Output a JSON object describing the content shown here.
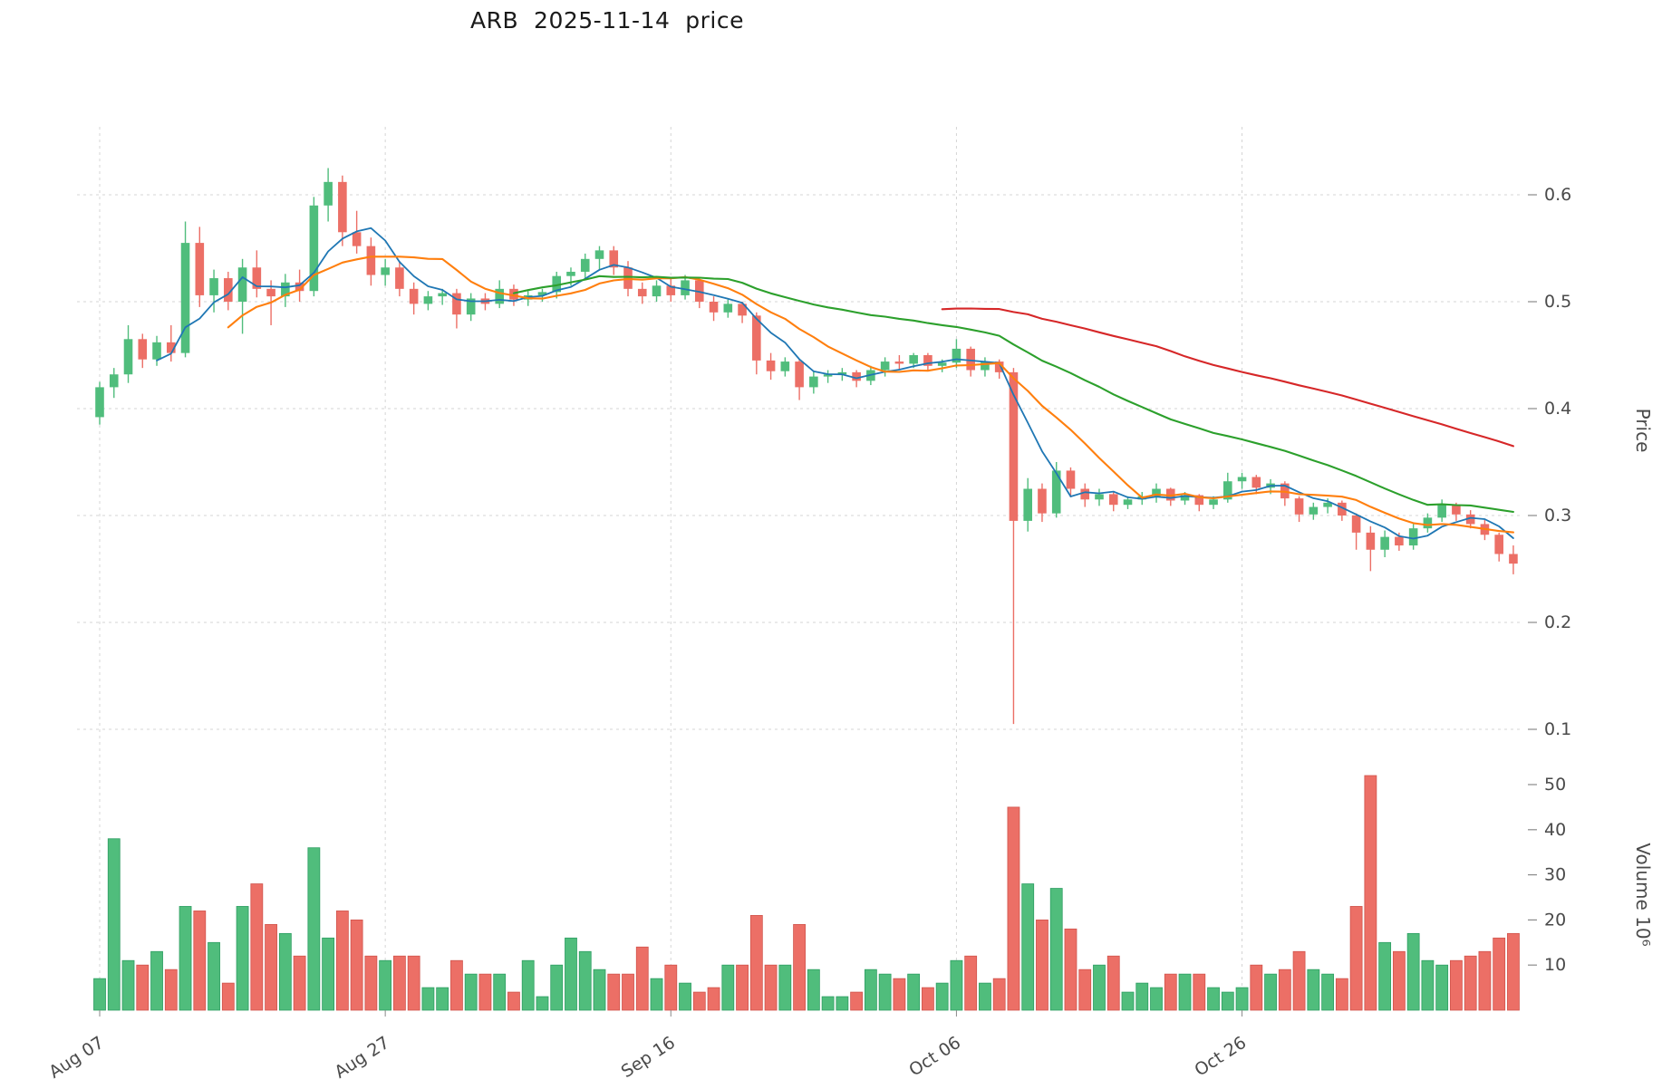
{
  "chart_data": {
    "type": "candlestick",
    "title": "ARB  2025-11-14  price",
    "ylabel_price": "Price",
    "ylabel_volume": "Volume  10⁶",
    "volume_unit": "10^6",
    "background": "#ffffff",
    "grid_color": "#d4d4d4",
    "tick_color": "#4a4a4a",
    "up_color": "#50bd7c",
    "down_color": "#ec6f66",
    "up_edge": "#2e9e63",
    "down_edge": "#d0544c",
    "price_ticks": [
      0.1,
      0.2,
      0.3,
      0.4,
      0.5,
      0.6
    ],
    "volume_ticks": [
      10,
      20,
      30,
      40,
      50
    ],
    "price_range": [
      0.08,
      0.65
    ],
    "x_ticks": [
      {
        "index": 0,
        "label": "Aug 07"
      },
      {
        "index": 20,
        "label": "Aug 27"
      },
      {
        "index": 40,
        "label": "Sep 16"
      },
      {
        "index": 60,
        "label": "Oct 06"
      },
      {
        "index": 80,
        "label": "Oct 26"
      }
    ],
    "moving_averages": [
      {
        "name": "ma-5",
        "window": 5,
        "color": "#1f77b4",
        "width": 1.8
      },
      {
        "name": "ma-10",
        "window": 10,
        "color": "#ff7f0e",
        "width": 2.1
      },
      {
        "name": "ma-30",
        "window": 30,
        "color": "#2ca02c",
        "width": 2.1
      },
      {
        "name": "ma-60",
        "window": 60,
        "color": "#d62728",
        "width": 2.1
      }
    ],
    "candles": [
      [
        "2025-08-07",
        0.392,
        0.425,
        0.385,
        0.42,
        7
      ],
      [
        "2025-08-08",
        0.42,
        0.438,
        0.41,
        0.432,
        38
      ],
      [
        "2025-08-09",
        0.432,
        0.478,
        0.424,
        0.465,
        11
      ],
      [
        "2025-08-10",
        0.465,
        0.47,
        0.438,
        0.446,
        10
      ],
      [
        "2025-08-11",
        0.446,
        0.468,
        0.44,
        0.462,
        13
      ],
      [
        "2025-08-12",
        0.462,
        0.478,
        0.444,
        0.452,
        9
      ],
      [
        "2025-08-13",
        0.452,
        0.575,
        0.448,
        0.555,
        23
      ],
      [
        "2025-08-14",
        0.555,
        0.57,
        0.495,
        0.506,
        22
      ],
      [
        "2025-08-15",
        0.506,
        0.53,
        0.49,
        0.522,
        15
      ],
      [
        "2025-08-16",
        0.522,
        0.528,
        0.492,
        0.5,
        6
      ],
      [
        "2025-08-17",
        0.5,
        0.54,
        0.47,
        0.532,
        23
      ],
      [
        "2025-08-18",
        0.532,
        0.548,
        0.504,
        0.512,
        28
      ],
      [
        "2025-08-19",
        0.512,
        0.52,
        0.478,
        0.505,
        19
      ],
      [
        "2025-08-20",
        0.505,
        0.526,
        0.495,
        0.518,
        17
      ],
      [
        "2025-08-21",
        0.518,
        0.53,
        0.5,
        0.51,
        12
      ],
      [
        "2025-08-22",
        0.51,
        0.598,
        0.505,
        0.59,
        36
      ],
      [
        "2025-08-23",
        0.59,
        0.625,
        0.575,
        0.612,
        16
      ],
      [
        "2025-08-24",
        0.612,
        0.618,
        0.552,
        0.565,
        22
      ],
      [
        "2025-08-25",
        0.565,
        0.585,
        0.545,
        0.552,
        20
      ],
      [
        "2025-08-26",
        0.552,
        0.56,
        0.515,
        0.525,
        12
      ],
      [
        "2025-08-27",
        0.525,
        0.54,
        0.515,
        0.532,
        11
      ],
      [
        "2025-08-28",
        0.532,
        0.538,
        0.505,
        0.512,
        12
      ],
      [
        "2025-08-29",
        0.512,
        0.518,
        0.488,
        0.498,
        12
      ],
      [
        "2025-08-30",
        0.498,
        0.51,
        0.492,
        0.505,
        5
      ],
      [
        "2025-08-31",
        0.505,
        0.512,
        0.497,
        0.508,
        5
      ],
      [
        "2025-09-01",
        0.508,
        0.512,
        0.475,
        0.488,
        11
      ],
      [
        "2025-09-02",
        0.488,
        0.508,
        0.482,
        0.503,
        8
      ],
      [
        "2025-09-03",
        0.503,
        0.508,
        0.492,
        0.498,
        8
      ],
      [
        "2025-09-04",
        0.498,
        0.52,
        0.494,
        0.512,
        8
      ],
      [
        "2025-09-05",
        0.512,
        0.516,
        0.496,
        0.502,
        4
      ],
      [
        "2025-09-06",
        0.502,
        0.51,
        0.496,
        0.506,
        11
      ],
      [
        "2025-09-07",
        0.506,
        0.512,
        0.5,
        0.509,
        3
      ],
      [
        "2025-09-08",
        0.509,
        0.528,
        0.503,
        0.524,
        10
      ],
      [
        "2025-09-09",
        0.524,
        0.532,
        0.515,
        0.528,
        16
      ],
      [
        "2025-09-10",
        0.528,
        0.545,
        0.522,
        0.54,
        13
      ],
      [
        "2025-09-11",
        0.54,
        0.552,
        0.53,
        0.548,
        9
      ],
      [
        "2025-09-12",
        0.548,
        0.552,
        0.525,
        0.532,
        8
      ],
      [
        "2025-09-13",
        0.532,
        0.538,
        0.505,
        0.512,
        8
      ],
      [
        "2025-09-14",
        0.512,
        0.518,
        0.498,
        0.505,
        14
      ],
      [
        "2025-09-15",
        0.505,
        0.52,
        0.5,
        0.515,
        7
      ],
      [
        "2025-09-16",
        0.515,
        0.522,
        0.5,
        0.506,
        10
      ],
      [
        "2025-09-17",
        0.506,
        0.525,
        0.502,
        0.52,
        6
      ],
      [
        "2025-09-18",
        0.52,
        0.522,
        0.494,
        0.5,
        4
      ],
      [
        "2025-09-19",
        0.5,
        0.505,
        0.482,
        0.49,
        5
      ],
      [
        "2025-09-20",
        0.49,
        0.502,
        0.485,
        0.498,
        10
      ],
      [
        "2025-09-21",
        0.498,
        0.5,
        0.48,
        0.487,
        10
      ],
      [
        "2025-09-22",
        0.487,
        0.49,
        0.432,
        0.445,
        21
      ],
      [
        "2025-09-23",
        0.445,
        0.452,
        0.427,
        0.435,
        10
      ],
      [
        "2025-09-24",
        0.435,
        0.448,
        0.43,
        0.444,
        10
      ],
      [
        "2025-09-25",
        0.444,
        0.446,
        0.408,
        0.42,
        19
      ],
      [
        "2025-09-26",
        0.42,
        0.435,
        0.414,
        0.43,
        9
      ],
      [
        "2025-09-27",
        0.43,
        0.436,
        0.424,
        0.432,
        3
      ],
      [
        "2025-09-28",
        0.432,
        0.438,
        0.426,
        0.434,
        3
      ],
      [
        "2025-09-29",
        0.434,
        0.436,
        0.42,
        0.426,
        4
      ],
      [
        "2025-09-30",
        0.426,
        0.44,
        0.422,
        0.436,
        9
      ],
      [
        "2025-10-01",
        0.436,
        0.448,
        0.43,
        0.444,
        8
      ],
      [
        "2025-10-02",
        0.444,
        0.45,
        0.436,
        0.442,
        7
      ],
      [
        "2025-10-03",
        0.442,
        0.452,
        0.438,
        0.45,
        8
      ],
      [
        "2025-10-04",
        0.45,
        0.452,
        0.435,
        0.44,
        5
      ],
      [
        "2025-10-05",
        0.44,
        0.446,
        0.434,
        0.443,
        6
      ],
      [
        "2025-10-06",
        0.443,
        0.465,
        0.438,
        0.456,
        11
      ],
      [
        "2025-10-07",
        0.456,
        0.458,
        0.43,
        0.436,
        12
      ],
      [
        "2025-10-08",
        0.436,
        0.448,
        0.43,
        0.444,
        6
      ],
      [
        "2025-10-09",
        0.444,
        0.446,
        0.428,
        0.434,
        7
      ],
      [
        "2025-10-10",
        0.434,
        0.438,
        0.105,
        0.295,
        45
      ],
      [
        "2025-10-11",
        0.295,
        0.335,
        0.285,
        0.325,
        28
      ],
      [
        "2025-10-12",
        0.325,
        0.33,
        0.294,
        0.302,
        20
      ],
      [
        "2025-10-13",
        0.302,
        0.35,
        0.298,
        0.342,
        27
      ],
      [
        "2025-10-14",
        0.342,
        0.345,
        0.317,
        0.325,
        18
      ],
      [
        "2025-10-15",
        0.325,
        0.33,
        0.308,
        0.315,
        9
      ],
      [
        "2025-10-16",
        0.315,
        0.325,
        0.309,
        0.32,
        10
      ],
      [
        "2025-10-17",
        0.32,
        0.322,
        0.304,
        0.31,
        12
      ],
      [
        "2025-10-18",
        0.31,
        0.318,
        0.306,
        0.315,
        4
      ],
      [
        "2025-10-19",
        0.315,
        0.322,
        0.31,
        0.318,
        6
      ],
      [
        "2025-10-20",
        0.318,
        0.33,
        0.312,
        0.325,
        5
      ],
      [
        "2025-10-21",
        0.325,
        0.326,
        0.309,
        0.314,
        8
      ],
      [
        "2025-10-22",
        0.314,
        0.322,
        0.31,
        0.319,
        8
      ],
      [
        "2025-10-23",
        0.319,
        0.32,
        0.304,
        0.31,
        8
      ],
      [
        "2025-10-24",
        0.31,
        0.318,
        0.306,
        0.315,
        5
      ],
      [
        "2025-10-25",
        0.315,
        0.34,
        0.312,
        0.332,
        4
      ],
      [
        "2025-10-26",
        0.332,
        0.34,
        0.325,
        0.336,
        5
      ],
      [
        "2025-10-27",
        0.336,
        0.338,
        0.32,
        0.326,
        10
      ],
      [
        "2025-10-28",
        0.326,
        0.334,
        0.32,
        0.33,
        8
      ],
      [
        "2025-10-29",
        0.33,
        0.332,
        0.309,
        0.316,
        9
      ],
      [
        "2025-10-30",
        0.316,
        0.318,
        0.294,
        0.301,
        13
      ],
      [
        "2025-10-31",
        0.301,
        0.312,
        0.296,
        0.308,
        9
      ],
      [
        "2025-11-01",
        0.308,
        0.316,
        0.302,
        0.312,
        8
      ],
      [
        "2025-11-02",
        0.312,
        0.314,
        0.295,
        0.3,
        7
      ],
      [
        "2025-11-03",
        0.3,
        0.302,
        0.268,
        0.284,
        23
      ],
      [
        "2025-11-04",
        0.284,
        0.29,
        0.248,
        0.268,
        52
      ],
      [
        "2025-11-05",
        0.268,
        0.286,
        0.261,
        0.28,
        15
      ],
      [
        "2025-11-06",
        0.28,
        0.284,
        0.267,
        0.272,
        13
      ],
      [
        "2025-11-07",
        0.272,
        0.292,
        0.268,
        0.288,
        17
      ],
      [
        "2025-11-08",
        0.288,
        0.302,
        0.284,
        0.298,
        11
      ],
      [
        "2025-11-09",
        0.298,
        0.315,
        0.294,
        0.31,
        10
      ],
      [
        "2025-11-10",
        0.31,
        0.312,
        0.295,
        0.301,
        11
      ],
      [
        "2025-11-11",
        0.301,
        0.305,
        0.288,
        0.292,
        12
      ],
      [
        "2025-11-12",
        0.292,
        0.296,
        0.277,
        0.282,
        13
      ],
      [
        "2025-11-13",
        0.282,
        0.284,
        0.257,
        0.264,
        16
      ],
      [
        "2025-11-14",
        0.264,
        0.272,
        0.245,
        0.255,
        17
      ]
    ]
  }
}
